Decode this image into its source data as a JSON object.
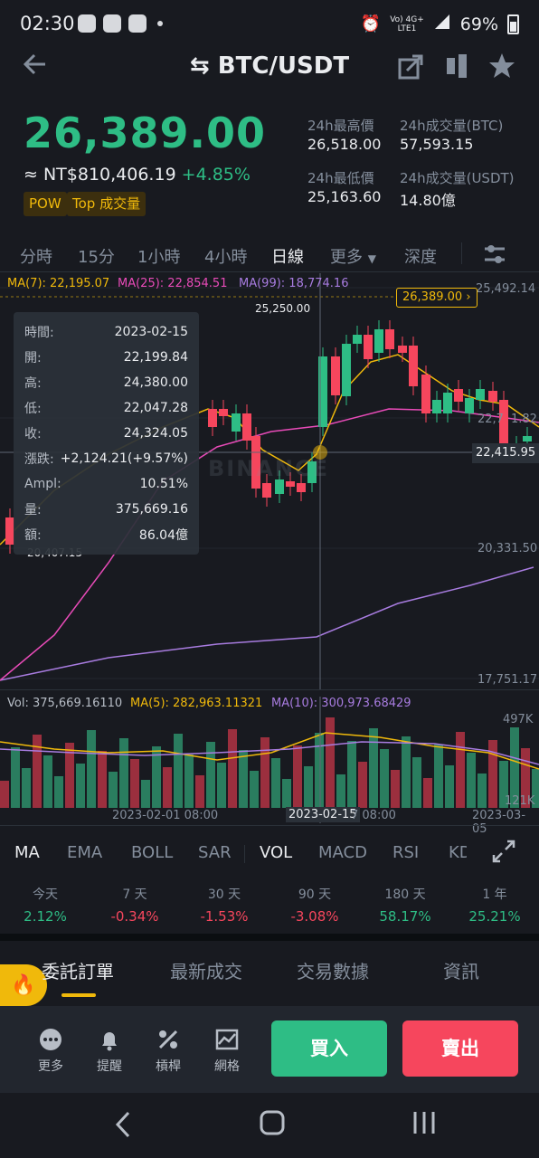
{
  "status": {
    "time": "02:30",
    "network": "Vo) 4G+",
    "network_sub": "LTE1",
    "battery": "69%"
  },
  "header": {
    "pair": "BTC/USDT"
  },
  "ticker": {
    "price": "26,389.00",
    "fiat": "≈ NT$810,406.19",
    "change": "+4.85%",
    "tags": [
      "POW",
      "Top 成交量"
    ],
    "stats": [
      {
        "label": "24h最高價",
        "value": "26,518.00"
      },
      {
        "label": "24h成交量(BTC)",
        "value": "57,593.15"
      },
      {
        "label": "24h最低價",
        "value": "25,163.60"
      },
      {
        "label": "24h成交量(USDT)",
        "value": "14.80億"
      }
    ]
  },
  "timeframes": [
    "分時",
    "15分",
    "1小時",
    "4小時",
    "日線",
    "更多",
    "深度"
  ],
  "ma_legend": {
    "ma7": "MA(7): 22,195.07",
    "ma25": "MA(25): 22,854.51",
    "ma99": "MA(99): 18,774.16"
  },
  "price_axis": {
    "top": "25,492.14",
    "mid_hidden": "22,7",
    "mid_tail": "1.82",
    "lower": "20,331.50",
    "bottom": "17,751.17"
  },
  "chart_labels": {
    "current_price": "26,389.00",
    "high_marker": "25,250.00",
    "low_marker": "20,407.15",
    "crosshair_price": "22,415.95",
    "watermark": "BINANCE"
  },
  "tooltip": [
    {
      "k": "時間:",
      "v": "2023-02-15"
    },
    {
      "k": "開:",
      "v": "22,199.84"
    },
    {
      "k": "高:",
      "v": "24,380.00"
    },
    {
      "k": "低:",
      "v": "22,047.28"
    },
    {
      "k": "收:",
      "v": "24,324.05"
    },
    {
      "k": "漲跌:",
      "v": "+2,124.21(+9.57%)"
    },
    {
      "k": "Ampl:",
      "v": "10.51%"
    },
    {
      "k": "量:",
      "v": "375,669.16"
    },
    {
      "k": "額:",
      "v": "86.04億"
    }
  ],
  "volume": {
    "vol": "Vol: 375,669.16110",
    "ma5": "MA(5): 282,963.11321",
    "ma10": "MA(10): 300,973.68429",
    "axis_top": "497K",
    "axis_bottom": "121K"
  },
  "date_axis": {
    "d1": "2023-02-01 08:00",
    "d2": "2023-02-15",
    "d2_tail": "7 08:00",
    "d3": "2023-03-05"
  },
  "indicators": [
    "MA",
    "EMA",
    "BOLL",
    "SAR",
    "VOL",
    "MACD",
    "RSI",
    "KD"
  ],
  "performance": [
    {
      "label": "今天",
      "value": "2.12%"
    },
    {
      "label": "7 天",
      "value": "-0.34%"
    },
    {
      "label": "30 天",
      "value": "-1.53%"
    },
    {
      "label": "90 天",
      "value": "-3.08%"
    },
    {
      "label": "180 天",
      "value": "58.17%"
    },
    {
      "label": "1 年",
      "value": "25.21%"
    }
  ],
  "order_tabs": [
    "委託訂單",
    "最新成交",
    "交易數據",
    "資訊"
  ],
  "actions": {
    "more": "更多",
    "alert": "提醒",
    "leverage": "槓桿",
    "grid": "網格",
    "buy": "買入",
    "sell": "賣出"
  },
  "colors": {
    "up": "#2ebd85",
    "down": "#f6465d",
    "accent": "#f0b90b",
    "background": "#181a20"
  },
  "chart_data": {
    "type": "candlestick",
    "x": [
      "2023-02-15"
    ],
    "open": [
      22199.84
    ],
    "high": [
      24380.0
    ],
    "low": [
      22047.28
    ],
    "close": [
      24324.05
    ],
    "volume": [
      375669.16
    ]
  }
}
